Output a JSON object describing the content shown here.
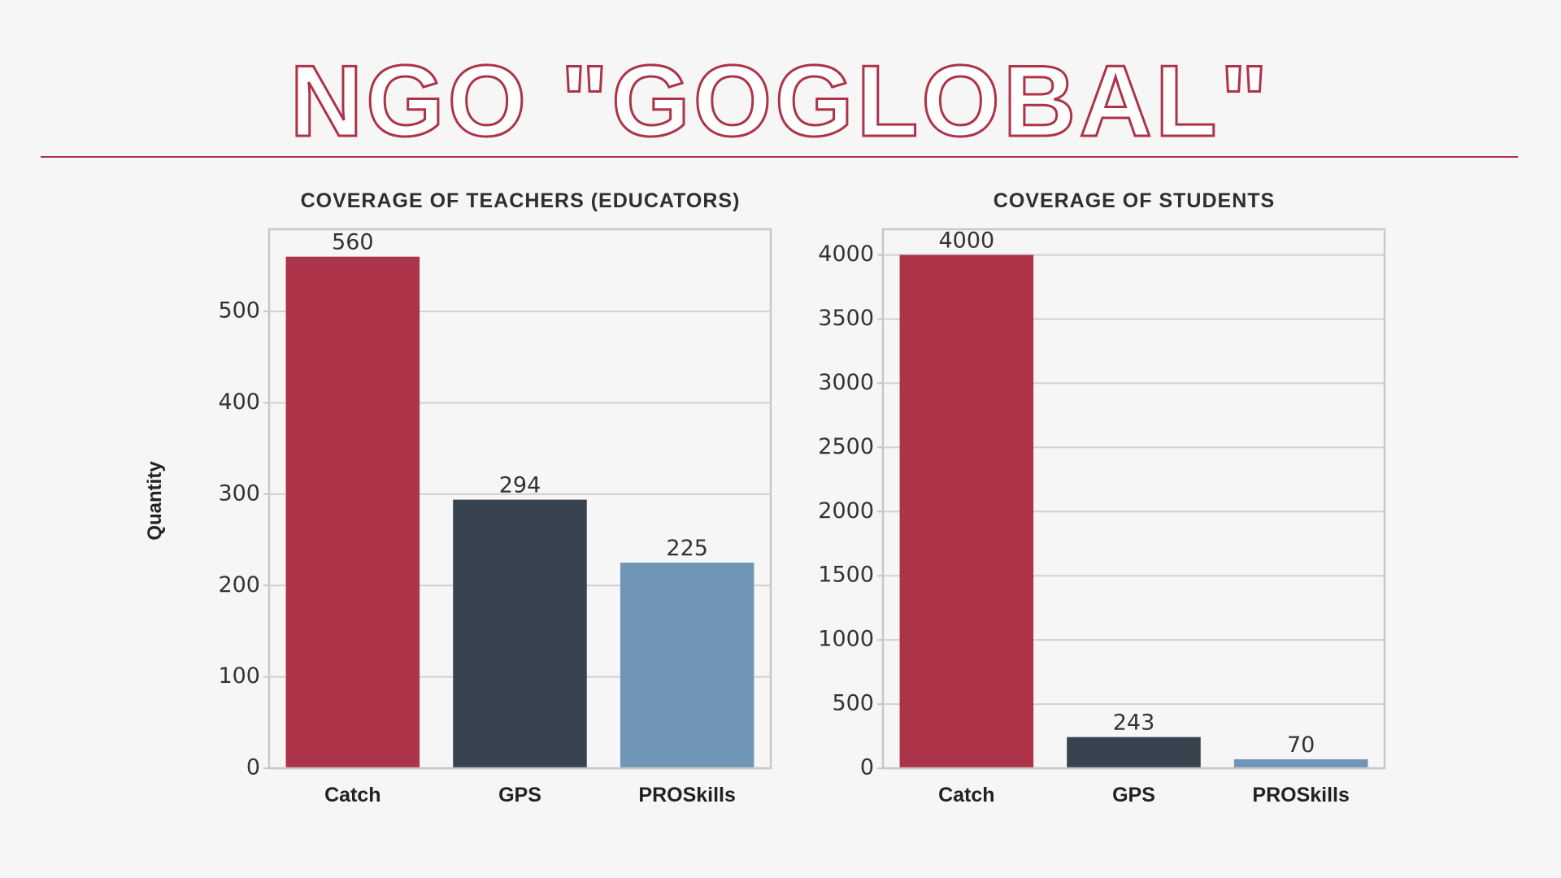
{
  "title": "NGO \"GOGLOBAL\"",
  "colors": {
    "accent": "#ad3349",
    "catch": "#ad3349",
    "gps": "#38434f",
    "proskills": "#6f96b7",
    "grid": "#d0d0d0",
    "axis_frame": "#c8c8c8"
  },
  "chart_data": [
    {
      "type": "bar",
      "title": "COVERAGE OF TEACHERS (EDUCATORS)",
      "ylabel": "Quantity",
      "xlabel": "",
      "categories": [
        "Catch",
        "GPS",
        "PROSkills"
      ],
      "values": [
        560,
        294,
        225
      ],
      "value_labels": [
        "560",
        "294",
        "225"
      ],
      "ylim": [
        0,
        590
      ],
      "yticks": [
        0,
        100,
        200,
        300,
        400,
        500
      ],
      "ytick_labels": [
        "0",
        "100",
        "200",
        "300",
        "400",
        "500"
      ],
      "grid": true,
      "legend": "none"
    },
    {
      "type": "bar",
      "title": "COVERAGE OF STUDENTS",
      "ylabel": "",
      "xlabel": "",
      "categories": [
        "Catch",
        "GPS",
        "PROSkills"
      ],
      "values": [
        4000,
        243,
        70
      ],
      "value_labels": [
        "4000",
        "243",
        "70"
      ],
      "ylim": [
        0,
        4200
      ],
      "yticks": [
        0,
        500,
        1000,
        1500,
        2000,
        2500,
        3000,
        3500,
        4000
      ],
      "ytick_labels": [
        "0",
        "500",
        "1000",
        "1500",
        "2000",
        "2500",
        "3000",
        "3500",
        "4000"
      ],
      "grid": true,
      "legend": "none"
    }
  ]
}
